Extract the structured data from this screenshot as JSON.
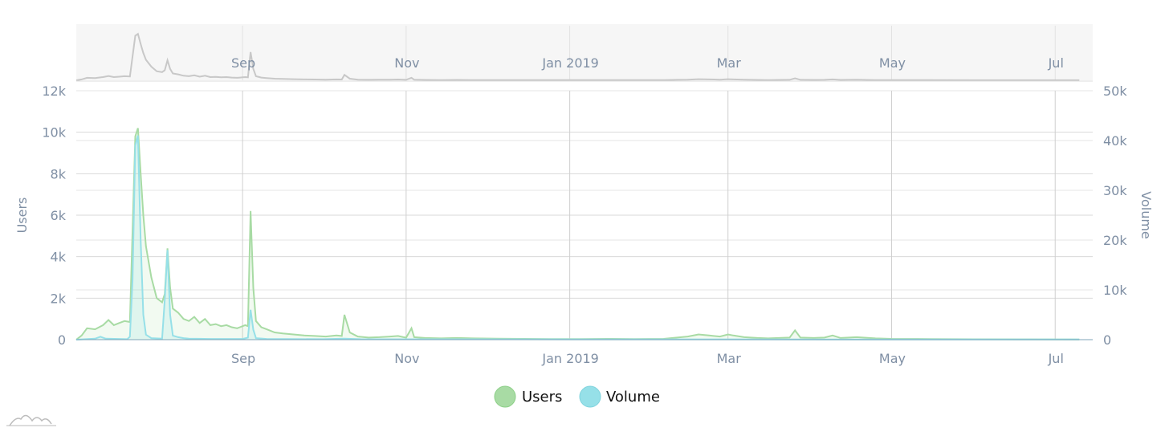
{
  "chart_data": {
    "type": "area",
    "title": "",
    "x_range": [
      "2018-07-01",
      "2019-07-15"
    ],
    "x_ticks": [
      {
        "date": "2018-09-01",
        "label": "Sep"
      },
      {
        "date": "2018-11-01",
        "label": "Nov"
      },
      {
        "date": "2019-01-01",
        "label": "Jan 2019"
      },
      {
        "date": "2019-03-01",
        "label": "Mar"
      },
      {
        "date": "2019-05-01",
        "label": "May"
      },
      {
        "date": "2019-07-01",
        "label": "Jul"
      }
    ],
    "y_left": {
      "label": "Users",
      "range": [
        0,
        12000
      ],
      "ticks": [
        0,
        2000,
        4000,
        6000,
        8000,
        10000,
        12000
      ],
      "tick_labels": [
        "0",
        "2k",
        "4k",
        "6k",
        "8k",
        "10k",
        "12k"
      ]
    },
    "y_right": {
      "label": "Volume",
      "range": [
        0,
        50000
      ],
      "ticks": [
        0,
        10000,
        20000,
        30000,
        40000,
        50000
      ],
      "tick_labels": [
        "0",
        "10k",
        "20k",
        "30k",
        "40k",
        "50k"
      ]
    },
    "series": [
      {
        "name": "Users",
        "axis": "left",
        "color": "#a8dba4",
        "points": [
          [
            "2018-07-01",
            0
          ],
          [
            "2018-07-03",
            200
          ],
          [
            "2018-07-05",
            550
          ],
          [
            "2018-07-08",
            500
          ],
          [
            "2018-07-11",
            700
          ],
          [
            "2018-07-13",
            950
          ],
          [
            "2018-07-15",
            700
          ],
          [
            "2018-07-17",
            800
          ],
          [
            "2018-07-19",
            900
          ],
          [
            "2018-07-21",
            850
          ],
          [
            "2018-07-23",
            9800
          ],
          [
            "2018-07-24",
            10200
          ],
          [
            "2018-07-25",
            8000
          ],
          [
            "2018-07-26",
            6000
          ],
          [
            "2018-07-27",
            4500
          ],
          [
            "2018-07-29",
            3000
          ],
          [
            "2018-07-31",
            2000
          ],
          [
            "2018-08-02",
            1800
          ],
          [
            "2018-08-03",
            2200
          ],
          [
            "2018-08-04",
            4400
          ],
          [
            "2018-08-05",
            2500
          ],
          [
            "2018-08-06",
            1500
          ],
          [
            "2018-08-08",
            1300
          ],
          [
            "2018-08-10",
            1000
          ],
          [
            "2018-08-12",
            900
          ],
          [
            "2018-08-14",
            1100
          ],
          [
            "2018-08-16",
            800
          ],
          [
            "2018-08-18",
            1000
          ],
          [
            "2018-08-20",
            700
          ],
          [
            "2018-08-22",
            750
          ],
          [
            "2018-08-24",
            650
          ],
          [
            "2018-08-26",
            700
          ],
          [
            "2018-08-28",
            600
          ],
          [
            "2018-08-30",
            550
          ],
          [
            "2018-08-31",
            600
          ],
          [
            "2018-09-01",
            650
          ],
          [
            "2018-09-02",
            700
          ],
          [
            "2018-09-03",
            650
          ],
          [
            "2018-09-04",
            6200
          ],
          [
            "2018-09-05",
            2500
          ],
          [
            "2018-09-06",
            900
          ],
          [
            "2018-09-08",
            600
          ],
          [
            "2018-09-10",
            500
          ],
          [
            "2018-09-13",
            350
          ],
          [
            "2018-09-16",
            300
          ],
          [
            "2018-09-20",
            250
          ],
          [
            "2018-09-24",
            200
          ],
          [
            "2018-09-28",
            180
          ],
          [
            "2018-10-02",
            150
          ],
          [
            "2018-10-06",
            200
          ],
          [
            "2018-10-08",
            180
          ],
          [
            "2018-10-09",
            1200
          ],
          [
            "2018-10-11",
            350
          ],
          [
            "2018-10-14",
            150
          ],
          [
            "2018-10-18",
            100
          ],
          [
            "2018-10-22",
            120
          ],
          [
            "2018-10-26",
            150
          ],
          [
            "2018-10-29",
            180
          ],
          [
            "2018-10-31",
            120
          ],
          [
            "2018-11-01",
            100
          ],
          [
            "2018-11-03",
            550
          ],
          [
            "2018-11-04",
            120
          ],
          [
            "2018-11-08",
            80
          ],
          [
            "2018-11-14",
            60
          ],
          [
            "2018-11-20",
            80
          ],
          [
            "2018-11-26",
            60
          ],
          [
            "2018-12-05",
            50
          ],
          [
            "2018-12-15",
            40
          ],
          [
            "2018-12-25",
            30
          ],
          [
            "2019-01-05",
            30
          ],
          [
            "2019-01-15",
            40
          ],
          [
            "2019-01-25",
            30
          ],
          [
            "2019-02-05",
            40
          ],
          [
            "2019-02-10",
            100
          ],
          [
            "2019-02-14",
            150
          ],
          [
            "2019-02-18",
            250
          ],
          [
            "2019-02-22",
            200
          ],
          [
            "2019-02-26",
            150
          ],
          [
            "2019-03-01",
            250
          ],
          [
            "2019-03-03",
            200
          ],
          [
            "2019-03-07",
            120
          ],
          [
            "2019-03-12",
            80
          ],
          [
            "2019-03-16",
            60
          ],
          [
            "2019-03-20",
            80
          ],
          [
            "2019-03-24",
            100
          ],
          [
            "2019-03-26",
            450
          ],
          [
            "2019-03-28",
            100
          ],
          [
            "2019-04-02",
            80
          ],
          [
            "2019-04-06",
            100
          ],
          [
            "2019-04-09",
            200
          ],
          [
            "2019-04-12",
            80
          ],
          [
            "2019-04-18",
            120
          ],
          [
            "2019-04-25",
            60
          ],
          [
            "2019-05-01",
            40
          ],
          [
            "2019-05-15",
            30
          ],
          [
            "2019-06-01",
            20
          ],
          [
            "2019-06-20",
            15
          ],
          [
            "2019-07-10",
            10
          ]
        ]
      },
      {
        "name": "Volume",
        "axis": "right",
        "color": "#96e0e8",
        "points": [
          [
            "2018-07-01",
            0
          ],
          [
            "2018-07-08",
            200
          ],
          [
            "2018-07-10",
            600
          ],
          [
            "2018-07-12",
            200
          ],
          [
            "2018-07-20",
            100
          ],
          [
            "2018-07-21",
            600
          ],
          [
            "2018-07-22",
            12000
          ],
          [
            "2018-07-23",
            39000
          ],
          [
            "2018-07-24",
            41000
          ],
          [
            "2018-07-25",
            20000
          ],
          [
            "2018-07-26",
            5000
          ],
          [
            "2018-07-27",
            1000
          ],
          [
            "2018-07-29",
            300
          ],
          [
            "2018-08-02",
            200
          ],
          [
            "2018-08-03",
            8000
          ],
          [
            "2018-08-04",
            18000
          ],
          [
            "2018-08-05",
            5000
          ],
          [
            "2018-08-06",
            800
          ],
          [
            "2018-08-08",
            500
          ],
          [
            "2018-08-10",
            300
          ],
          [
            "2018-08-12",
            200
          ],
          [
            "2018-08-20",
            150
          ],
          [
            "2018-09-01",
            150
          ],
          [
            "2018-09-03",
            400
          ],
          [
            "2018-09-04",
            6000
          ],
          [
            "2018-09-05",
            2000
          ],
          [
            "2018-09-06",
            300
          ],
          [
            "2018-09-10",
            150
          ],
          [
            "2018-10-01",
            100
          ],
          [
            "2018-10-09",
            200
          ],
          [
            "2018-10-15",
            100
          ],
          [
            "2018-11-15",
            80
          ],
          [
            "2019-01-01",
            60
          ],
          [
            "2019-03-01",
            60
          ],
          [
            "2019-05-01",
            40
          ],
          [
            "2019-07-10",
            30
          ]
        ]
      }
    ],
    "legend": {
      "placement": "bottom-center"
    }
  }
}
